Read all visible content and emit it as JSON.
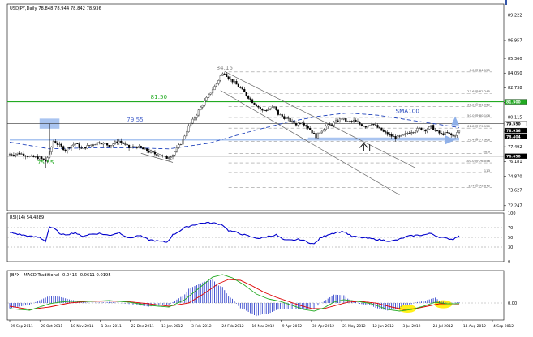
{
  "chart_data": [
    {
      "type": "line",
      "panel": "price",
      "title": "USDJPY,Daily  78.848 78.944 78.842 78.936",
      "y_ticks": [
        "89.222",
        "86.957",
        "85.360",
        "84.050",
        "82.738",
        "81.427",
        "80.115",
        "78.804",
        "77.492",
        "76.181",
        "74.870",
        "73.627",
        "72.247"
      ],
      "ylim": [
        71.8,
        90.2
      ],
      "price_tags": [
        {
          "label": "81.500",
          "value": 81.5,
          "color": "#22aa22"
        },
        {
          "label": "79.550",
          "value": 79.55,
          "color": "#ffffff"
        },
        {
          "label": "78.936",
          "value": 78.936,
          "color": "#000000"
        },
        {
          "label": "78.404",
          "value": 78.404,
          "color": "#000000"
        },
        {
          "label": "76.650",
          "value": 76.65,
          "color": "#000000"
        }
      ],
      "annotations": [
        {
          "text": "84.15",
          "x_day": 108,
          "y": 84.35,
          "color": "#888888"
        },
        {
          "text": "81.50",
          "x_day": 75,
          "y": 81.75,
          "color": "#22aa22"
        },
        {
          "text": "79.55",
          "x_day": 63,
          "y": 79.75,
          "color": "#4a66cc"
        },
        {
          "text": "75.55",
          "x_day": 18,
          "y": 75.9,
          "color": "#22aa22"
        },
        {
          "text": "SMA100",
          "x_day": 200,
          "y": 80.5,
          "color": "#2244bb"
        }
      ],
      "fib_levels": [
        {
          "label": "0.0 @ 84.155",
          "value": 84.155
        },
        {
          "label": "23.6 @ 82.245",
          "value": 82.245
        },
        {
          "label": "38.2 @ 81.062",
          "value": 81.062
        },
        {
          "label": "50.0 @ 80.106",
          "value": 80.106
        },
        {
          "label": "61.8 @ 79.150",
          "value": 79.15
        },
        {
          "label": "76.4 @ 77.968",
          "value": 77.968
        },
        {
          "label": "88.6",
          "value": 76.9
        },
        {
          "label": "100.0 @ 76.056",
          "value": 76.056
        },
        {
          "label": "113",
          "value": 75.2
        },
        {
          "label": "127 @ 73.842",
          "value": 73.842
        }
      ],
      "x_tick_labels": [
        "29 Sep 2011",
        "20 Oct 2011",
        "10 Nov 2011",
        "1 Dec 2011",
        "22 Dec 2011",
        "13 Jan 2012",
        "3 Feb 2012",
        "24 Feb 2012",
        "16 Mar 2012",
        "9 Apr 2012",
        "30 Apr 2012",
        "21 May 2012",
        "12 Jun 2012",
        "3 Jul 2012",
        "24 Jul 2012",
        "14 Aug 2012",
        "4 Sep 2012"
      ],
      "close_anchors": [
        [
          0,
          76.8
        ],
        [
          5,
          76.9
        ],
        [
          10,
          76.6
        ],
        [
          15,
          76.5
        ],
        [
          18,
          76.2
        ],
        [
          20,
          76.9
        ],
        [
          22,
          78.0
        ],
        [
          25,
          77.6
        ],
        [
          28,
          77.2
        ],
        [
          30,
          77.5
        ],
        [
          33,
          77.8
        ],
        [
          36,
          77.3
        ],
        [
          40,
          77.6
        ],
        [
          45,
          77.9
        ],
        [
          50,
          77.6
        ],
        [
          55,
          78.0
        ],
        [
          60,
          77.4
        ],
        [
          64,
          77.5
        ],
        [
          68,
          77.2
        ],
        [
          72,
          76.9
        ],
        [
          76,
          76.7
        ],
        [
          79,
          76.5
        ],
        [
          82,
          76.8
        ],
        [
          84,
          77.3
        ],
        [
          86,
          77.8
        ],
        [
          88,
          78.5
        ],
        [
          90,
          79.3
        ],
        [
          93,
          80.1
        ],
        [
          96,
          81.0
        ],
        [
          99,
          81.8
        ],
        [
          102,
          82.6
        ],
        [
          104,
          83.1
        ],
        [
          106,
          83.8
        ],
        [
          108,
          84.1
        ],
        [
          110,
          83.6
        ],
        [
          113,
          83.2
        ],
        [
          116,
          82.7
        ],
        [
          119,
          82.1
        ],
        [
          122,
          81.5
        ],
        [
          124,
          81.2
        ],
        [
          127,
          80.7
        ],
        [
          130,
          80.8
        ],
        [
          133,
          81.0
        ],
        [
          135,
          80.4
        ],
        [
          138,
          80.1
        ],
        [
          141,
          79.8
        ],
        [
          144,
          79.5
        ],
        [
          147,
          79.7
        ],
        [
          150,
          79.2
        ],
        [
          152,
          78.8
        ],
        [
          154,
          78.4
        ],
        [
          156,
          78.8
        ],
        [
          159,
          79.3
        ],
        [
          162,
          79.5
        ],
        [
          165,
          79.8
        ],
        [
          167,
          80.0
        ],
        [
          170,
          79.7
        ],
        [
          173,
          79.8
        ],
        [
          176,
          79.5
        ],
        [
          179,
          79.3
        ],
        [
          182,
          79.6
        ],
        [
          185,
          79.2
        ],
        [
          188,
          78.8
        ],
        [
          191,
          78.5
        ],
        [
          194,
          78.3
        ],
        [
          197,
          78.4
        ],
        [
          200,
          78.7
        ],
        [
          203,
          78.9
        ],
        [
          206,
          79.1
        ],
        [
          209,
          79.0
        ],
        [
          212,
          79.3
        ],
        [
          214,
          78.9
        ],
        [
          217,
          78.6
        ],
        [
          220,
          78.7
        ],
        [
          223,
          78.4
        ],
        [
          226,
          78.9
        ]
      ],
      "sma100_anchors": [
        [
          0,
          77.9
        ],
        [
          20,
          77.3
        ],
        [
          40,
          77.4
        ],
        [
          60,
          77.4
        ],
        [
          80,
          77.3
        ],
        [
          100,
          77.8
        ],
        [
          120,
          78.8
        ],
        [
          140,
          79.7
        ],
        [
          155,
          80.2
        ],
        [
          170,
          80.5
        ],
        [
          185,
          80.3
        ],
        [
          200,
          79.9
        ],
        [
          215,
          79.5
        ],
        [
          226,
          79.2
        ]
      ],
      "channel_lines": [
        [
          [
            108,
            84.2
          ],
          [
            204,
            75.6
          ]
        ],
        [
          [
            106,
            82.5
          ],
          [
            196,
            73.2
          ]
        ]
      ],
      "support_lines": [
        [
          [
            0,
            78.1
          ],
          [
            226,
            78.1
          ]
        ],
        [
          [
            150,
            78.25
          ],
          [
            226,
            78.25
          ]
        ]
      ],
      "colors": {
        "candle": "#000000",
        "sma": "#2244bb",
        "resistance": "#22aa22",
        "channel": "#666666",
        "fib": "#999999",
        "highlight": "#a9c4f0"
      }
    },
    {
      "type": "line",
      "panel": "rsi",
      "title": "RSI(14) 54.4889",
      "y_ticks": [
        "100",
        "70",
        "50",
        "30",
        "0"
      ],
      "ylim": [
        0,
        100
      ],
      "levels": [
        70,
        50,
        30
      ],
      "rsi_anchors": [
        [
          0,
          60
        ],
        [
          5,
          56
        ],
        [
          10,
          52
        ],
        [
          15,
          50
        ],
        [
          18,
          42
        ],
        [
          20,
          72
        ],
        [
          23,
          66
        ],
        [
          26,
          55
        ],
        [
          30,
          57
        ],
        [
          33,
          60
        ],
        [
          36,
          52
        ],
        [
          40,
          56
        ],
        [
          45,
          58
        ],
        [
          50,
          54
        ],
        [
          55,
          60
        ],
        [
          60,
          48
        ],
        [
          65,
          54
        ],
        [
          70,
          45
        ],
        [
          75,
          42
        ],
        [
          79,
          40
        ],
        [
          82,
          55
        ],
        [
          85,
          62
        ],
        [
          88,
          70
        ],
        [
          91,
          74
        ],
        [
          95,
          78
        ],
        [
          99,
          80
        ],
        [
          103,
          79
        ],
        [
          107,
          76
        ],
        [
          110,
          64
        ],
        [
          114,
          60
        ],
        [
          118,
          55
        ],
        [
          122,
          50
        ],
        [
          126,
          48
        ],
        [
          130,
          52
        ],
        [
          134,
          55
        ],
        [
          138,
          44
        ],
        [
          142,
          44
        ],
        [
          146,
          46
        ],
        [
          150,
          40
        ],
        [
          153,
          36
        ],
        [
          156,
          48
        ],
        [
          160,
          56
        ],
        [
          164,
          60
        ],
        [
          168,
          62
        ],
        [
          172,
          52
        ],
        [
          176,
          50
        ],
        [
          180,
          48
        ],
        [
          184,
          46
        ],
        [
          188,
          44
        ],
        [
          192,
          42
        ],
        [
          196,
          46
        ],
        [
          200,
          52
        ],
        [
          204,
          54
        ],
        [
          208,
          55
        ],
        [
          212,
          58
        ],
        [
          215,
          52
        ],
        [
          219,
          48
        ],
        [
          223,
          46
        ],
        [
          226,
          54.49
        ]
      ],
      "colors": {
        "line": "#0000cc",
        "level": "#888888"
      }
    },
    {
      "type": "line",
      "panel": "macd",
      "title": "[BFX - MACD Traditional -0.0416 -0.0611 0.0195",
      "y_ticks": [
        "0.00"
      ],
      "ylim": [
        -1.05,
        2.0
      ],
      "macd_anchors": [
        [
          0,
          -0.35
        ],
        [
          10,
          -0.45
        ],
        [
          20,
          -0.05
        ],
        [
          25,
          0.05
        ],
        [
          30,
          0.1
        ],
        [
          40,
          0.1
        ],
        [
          50,
          0.15
        ],
        [
          60,
          0.05
        ],
        [
          70,
          -0.15
        ],
        [
          80,
          -0.25
        ],
        [
          88,
          0.2
        ],
        [
          95,
          0.9
        ],
        [
          102,
          1.6
        ],
        [
          107,
          1.75
        ],
        [
          112,
          1.55
        ],
        [
          118,
          1.1
        ],
        [
          124,
          0.55
        ],
        [
          130,
          0.25
        ],
        [
          136,
          0.1
        ],
        [
          142,
          -0.15
        ],
        [
          148,
          -0.4
        ],
        [
          153,
          -0.5
        ],
        [
          158,
          -0.3
        ],
        [
          163,
          0.05
        ],
        [
          168,
          0.2
        ],
        [
          175,
          0.1
        ],
        [
          182,
          -0.05
        ],
        [
          190,
          -0.4
        ],
        [
          196,
          -0.5
        ],
        [
          202,
          -0.4
        ],
        [
          208,
          -0.2
        ],
        [
          214,
          0.05
        ],
        [
          220,
          -0.05
        ],
        [
          226,
          -0.04
        ]
      ],
      "signal_anchors": [
        [
          0,
          -0.2
        ],
        [
          10,
          -0.4
        ],
        [
          20,
          -0.25
        ],
        [
          30,
          0.0
        ],
        [
          40,
          0.1
        ],
        [
          50,
          0.12
        ],
        [
          60,
          0.08
        ],
        [
          70,
          -0.05
        ],
        [
          80,
          -0.2
        ],
        [
          90,
          0.0
        ],
        [
          98,
          0.6
        ],
        [
          105,
          1.2
        ],
        [
          110,
          1.45
        ],
        [
          116,
          1.4
        ],
        [
          122,
          1.05
        ],
        [
          128,
          0.65
        ],
        [
          134,
          0.35
        ],
        [
          140,
          0.1
        ],
        [
          146,
          -0.15
        ],
        [
          152,
          -0.35
        ],
        [
          158,
          -0.35
        ],
        [
          164,
          -0.15
        ],
        [
          170,
          0.05
        ],
        [
          176,
          0.1
        ],
        [
          184,
          0.0
        ],
        [
          192,
          -0.25
        ],
        [
          198,
          -0.4
        ],
        [
          204,
          -0.35
        ],
        [
          210,
          -0.2
        ],
        [
          216,
          -0.05
        ],
        [
          226,
          -0.06
        ]
      ],
      "highlights": [
        {
          "x_day": 200,
          "y": -0.35
        },
        {
          "x_day": 218,
          "y": -0.08
        }
      ],
      "colors": {
        "macd": "#22aa22",
        "signal": "#dd0000",
        "histogram": "#3344cc",
        "highlight": "#ffee00"
      }
    }
  ]
}
